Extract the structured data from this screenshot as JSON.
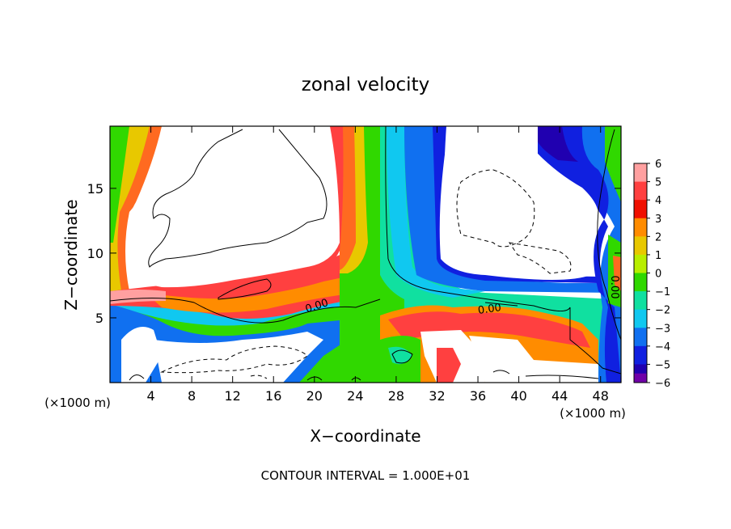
{
  "chart_data": {
    "type": "heatmap",
    "title": "zonal velocity",
    "xlabel": "X−coordinate",
    "ylabel": "Z−coordinate",
    "x_unit_left": "(×1000 m)",
    "x_unit_right": "(×1000 m)",
    "xlim": [
      0,
      50
    ],
    "ylim": [
      0,
      19.8
    ],
    "x_ticks": [
      4,
      8,
      12,
      16,
      20,
      24,
      28,
      32,
      36,
      40,
      44,
      48
    ],
    "x_tick_labels": [
      "4",
      "8",
      "12",
      "16",
      "20",
      "24",
      "28",
      "32",
      "36",
      "40",
      "44",
      "48"
    ],
    "y_ticks": [
      5,
      10,
      15
    ],
    "y_tick_labels": [
      "5",
      "10",
      "15"
    ],
    "colorbar": {
      "levels": [
        6,
        5,
        4,
        3,
        2,
        1,
        0,
        -1,
        -2,
        -3,
        -4,
        -5,
        -6
      ],
      "labels": [
        "6",
        "5",
        "4",
        "3",
        "2",
        "1",
        "0",
        "−1",
        "−2",
        "−3",
        "−4",
        "−5",
        "−6"
      ],
      "colors": [
        "#ffa0a0",
        "#ff4040",
        "#f01000",
        "#ff8c00",
        "#e8c800",
        "#b8ee00",
        "#30d800",
        "#10e0a0",
        "#10c8f0",
        "#1070f0",
        "#1020e0",
        "#2000b0",
        "#7000a8"
      ]
    },
    "contour_labels": [
      "0.00",
      "0.00",
      "0.00"
    ],
    "footer": "CONTOUR INTERVAL = 1.000E+01"
  }
}
